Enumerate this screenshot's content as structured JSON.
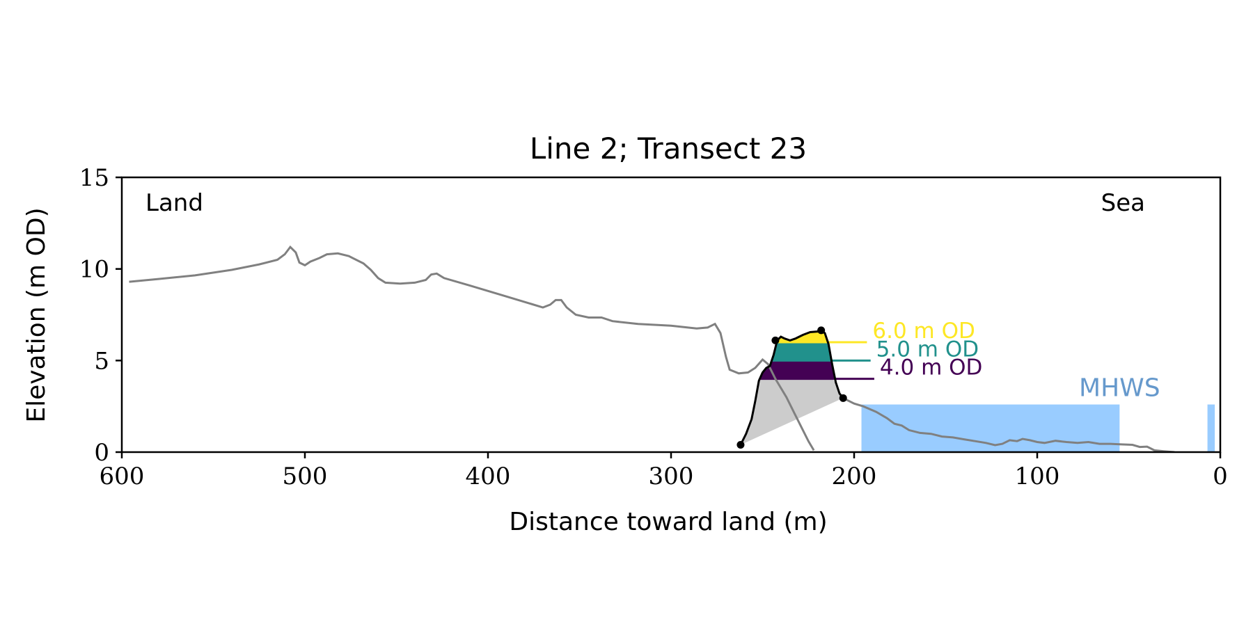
{
  "chart_data": {
    "type": "line",
    "title": "Line 2; Transect 23",
    "xlabel": "Distance toward land (m)",
    "ylabel": "Elevation (m OD)",
    "xlim": [
      600,
      0
    ],
    "ylim": [
      0,
      15
    ],
    "x_ticks": [
      600,
      500,
      400,
      300,
      200,
      100,
      0
    ],
    "y_ticks": [
      0,
      5,
      10,
      15
    ],
    "grid": false,
    "annotations": {
      "land_label": "Land",
      "sea_label": "Sea",
      "mhws_label": "MHWS"
    },
    "mhws": {
      "elevation": 2.6,
      "segments": [
        [
          196,
          55
        ],
        [
          7,
          3
        ]
      ],
      "color": "#99ccff",
      "label_color": "#6699cc"
    },
    "profile_color": "#808080",
    "profile": [
      [
        596,
        9.3
      ],
      [
        580,
        9.45
      ],
      [
        560,
        9.65
      ],
      [
        540,
        9.95
      ],
      [
        525,
        10.25
      ],
      [
        515,
        10.5
      ],
      [
        511,
        10.8
      ],
      [
        508,
        11.2
      ],
      [
        505,
        10.9
      ],
      [
        503,
        10.35
      ],
      [
        500,
        10.2
      ],
      [
        497,
        10.4
      ],
      [
        492,
        10.6
      ],
      [
        488,
        10.8
      ],
      [
        482,
        10.85
      ],
      [
        476,
        10.7
      ],
      [
        468,
        10.3
      ],
      [
        464,
        9.95
      ],
      [
        460,
        9.5
      ],
      [
        456,
        9.25
      ],
      [
        448,
        9.2
      ],
      [
        440,
        9.25
      ],
      [
        434,
        9.4
      ],
      [
        431,
        9.7
      ],
      [
        428,
        9.75
      ],
      [
        424,
        9.5
      ],
      [
        410,
        9.1
      ],
      [
        390,
        8.5
      ],
      [
        370,
        7.9
      ],
      [
        366,
        8.05
      ],
      [
        363,
        8.3
      ],
      [
        360,
        8.3
      ],
      [
        357,
        7.9
      ],
      [
        352,
        7.5
      ],
      [
        345,
        7.35
      ],
      [
        338,
        7.35
      ],
      [
        332,
        7.15
      ],
      [
        318,
        7.0
      ],
      [
        300,
        6.9
      ],
      [
        286,
        6.75
      ],
      [
        280,
        6.8
      ],
      [
        276,
        7.0
      ],
      [
        273,
        6.5
      ],
      [
        270,
        5.2
      ],
      [
        268,
        4.5
      ],
      [
        263,
        4.3
      ],
      [
        258,
        4.35
      ],
      [
        254,
        4.6
      ],
      [
        250,
        5.05
      ],
      [
        247,
        4.8
      ],
      [
        243,
        4.0
      ],
      [
        237,
        3.0
      ],
      [
        232,
        2.0
      ],
      [
        228,
        1.2
      ],
      [
        225,
        0.6
      ],
      [
        222,
        0.1
      ]
    ],
    "profile_sea": [
      [
        206,
        2.95
      ],
      [
        200,
        2.65
      ],
      [
        195,
        2.5
      ],
      [
        188,
        2.2
      ],
      [
        182,
        1.85
      ],
      [
        178,
        1.55
      ],
      [
        174,
        1.45
      ],
      [
        170,
        1.2
      ],
      [
        164,
        1.05
      ],
      [
        158,
        1.0
      ],
      [
        152,
        0.85
      ],
      [
        146,
        0.8
      ],
      [
        140,
        0.7
      ],
      [
        134,
        0.6
      ],
      [
        128,
        0.5
      ],
      [
        123,
        0.38
      ],
      [
        119,
        0.45
      ],
      [
        115,
        0.65
      ],
      [
        111,
        0.6
      ],
      [
        108,
        0.72
      ],
      [
        104,
        0.65
      ],
      [
        100,
        0.55
      ],
      [
        96,
        0.5
      ],
      [
        90,
        0.62
      ],
      [
        84,
        0.55
      ],
      [
        78,
        0.5
      ],
      [
        72,
        0.55
      ],
      [
        66,
        0.45
      ],
      [
        60,
        0.45
      ],
      [
        54,
        0.42
      ],
      [
        48,
        0.4
      ],
      [
        44,
        0.28
      ],
      [
        40,
        0.3
      ],
      [
        36,
        0.1
      ],
      [
        31,
        0.05
      ],
      [
        25,
        0.0
      ]
    ],
    "dune_outline": [
      [
        262,
        0.4
      ],
      [
        259,
        1.0
      ],
      [
        256,
        1.8
      ],
      [
        254,
        2.8
      ],
      [
        252,
        3.9
      ],
      [
        250,
        4.35
      ],
      [
        248,
        4.6
      ],
      [
        246,
        4.7
      ],
      [
        244,
        5.3
      ],
      [
        242,
        6.1
      ],
      [
        240,
        6.3
      ],
      [
        238,
        6.2
      ],
      [
        235,
        6.1
      ],
      [
        232,
        6.2
      ],
      [
        228,
        6.4
      ],
      [
        224,
        6.55
      ],
      [
        218,
        6.6
      ],
      [
        216,
        6.5
      ],
      [
        214,
        5.9
      ],
      [
        212,
        4.8
      ],
      [
        210,
        3.8
      ],
      [
        208,
        3.2
      ],
      [
        206,
        2.95
      ]
    ],
    "dune_points": [
      [
        262,
        0.4
      ],
      [
        243,
        6.1
      ],
      [
        218,
        6.65
      ],
      [
        206,
        2.95
      ]
    ],
    "dune_base_fill": "#cccccc",
    "elevation_bands": [
      {
        "label": "4.0 m OD",
        "low": 4.0,
        "high": 5.0,
        "color": "#440154",
        "line_end": 189
      },
      {
        "label": "5.0 m OD",
        "low": 5.0,
        "high": 6.0,
        "color": "#21918c",
        "line_end": 191
      },
      {
        "label": "6.0 m OD",
        "low": 6.0,
        "high": 6.7,
        "color": "#fde725",
        "line_end": 193
      }
    ]
  }
}
